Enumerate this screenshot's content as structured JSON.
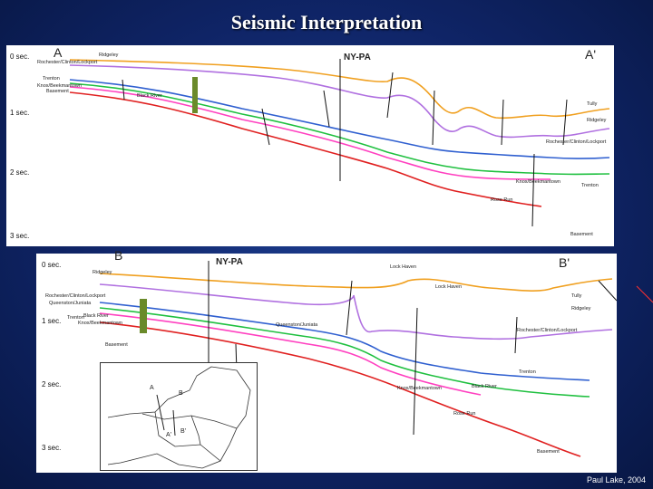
{
  "title": "Seismic Interpretation",
  "credit": "Paul Lake, 2004",
  "panel_a": {
    "left_label": "A",
    "right_label": "A'",
    "well_label": "NY-PA",
    "time_labels": [
      "0 sec.",
      "1 sec.",
      "2 sec.",
      "3 sec."
    ],
    "formations_left": [
      "Ridgeley",
      "Rochester/Clinton/Lockport",
      "Trenton",
      "Knox/Beekmantown",
      "Basement",
      "Black River"
    ],
    "formations_right": [
      "Tully",
      "Ridgeley",
      "Rochester/Clinton/Lockport",
      "Trenton",
      "Basement",
      "Rose Run",
      "Knox/Beekmantown"
    ]
  },
  "panel_b": {
    "left_label": "B",
    "right_label": "B'",
    "well_label": "NY-PA",
    "time_labels": [
      "0 sec.",
      "1 sec.",
      "2 sec.",
      "3 sec."
    ],
    "formations_left": [
      "Ridgeley",
      "Rochester/Clinton/Lockport",
      "Queenston/Juniata",
      "Trenton",
      "Black River",
      "Knox/Beekmantown",
      "Basement"
    ],
    "formations_right": [
      "Lock Haven",
      "Lock Haven",
      "Tully",
      "Ridgeley",
      "Rochester/Clinton/Lockport",
      "Trenton",
      "Black River",
      "Knox/Beekmantown",
      "Rose Run",
      "Basement",
      "Queenston/Juniata"
    ],
    "map_labels": [
      "A",
      "B",
      "A'",
      "B'"
    ]
  },
  "colors": {
    "background": "#0f2466",
    "orange": "#f0a020",
    "purple": "#b070e0",
    "blue": "#3060d0",
    "green": "#20c040",
    "pink": "#ff40c0",
    "red": "#e02020"
  }
}
